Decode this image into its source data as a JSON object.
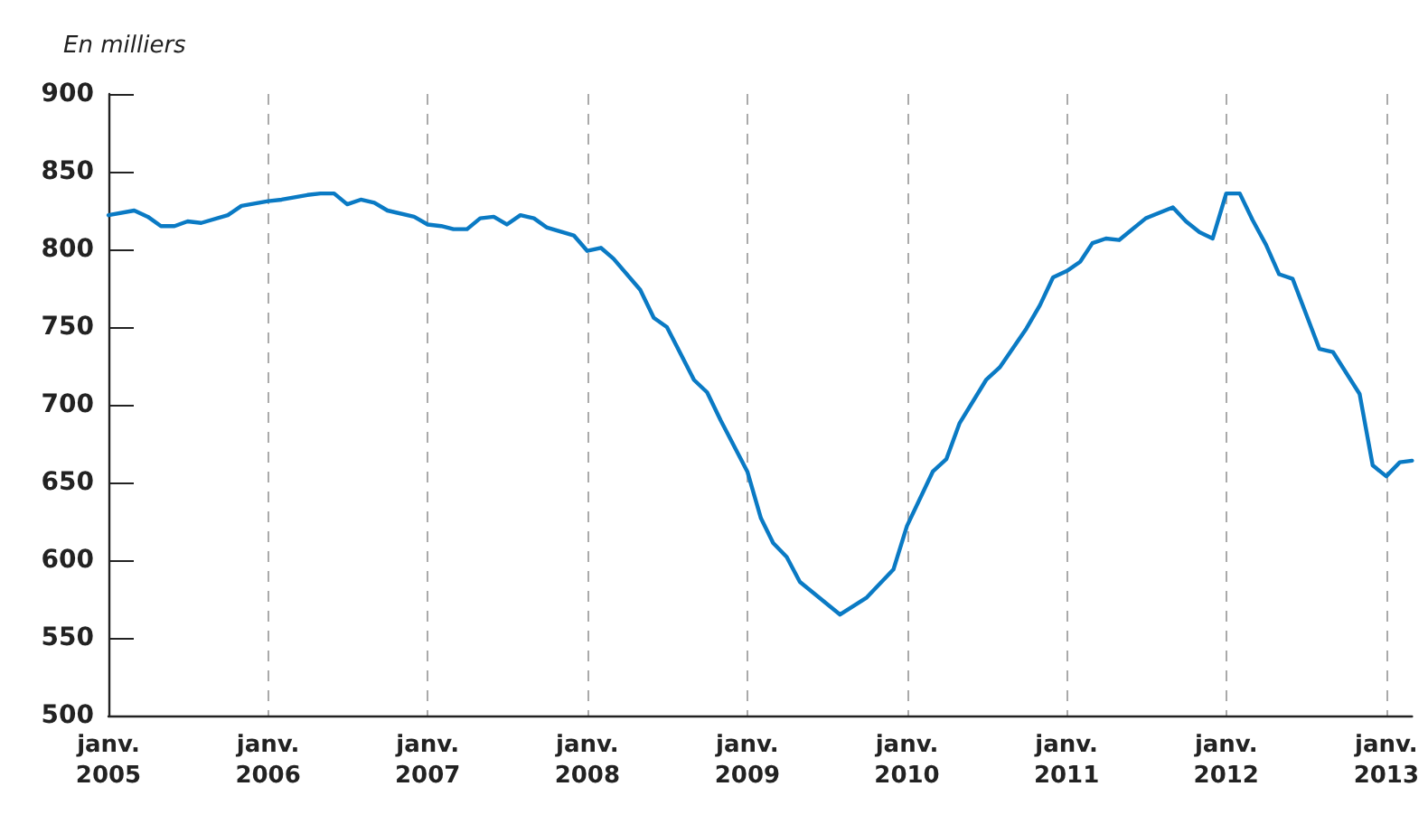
{
  "chart_data": {
    "type": "line",
    "ylabel": "En milliers",
    "x": [
      "2005-01",
      "2005-03",
      "2005-04",
      "2005-05",
      "2005-06",
      "2005-07",
      "2005-08",
      "2005-10",
      "2005-11",
      "2006-01",
      "2006-02",
      "2006-04",
      "2006-05",
      "2006-06",
      "2006-07",
      "2006-08",
      "2006-09",
      "2006-10",
      "2006-12",
      "2007-01",
      "2007-02",
      "2007-03",
      "2007-04",
      "2007-05",
      "2007-06",
      "2007-07",
      "2007-08",
      "2007-09",
      "2007-10",
      "2007-12",
      "2008-01",
      "2008-02",
      "2008-03",
      "2008-05",
      "2008-06",
      "2008-07",
      "2008-09",
      "2008-10",
      "2008-11",
      "2009-01",
      "2009-02",
      "2009-03",
      "2009-04",
      "2009-05",
      "2009-08",
      "2009-10",
      "2009-12",
      "2010-01",
      "2010-03",
      "2010-04",
      "2010-05",
      "2010-07",
      "2010-08",
      "2010-10",
      "2010-11",
      "2010-12",
      "2011-01",
      "2011-02",
      "2011-03",
      "2011-04",
      "2011-05",
      "2011-07",
      "2011-09",
      "2011-10",
      "2011-11",
      "2011-12",
      "2012-01",
      "2012-02",
      "2012-03",
      "2012-04",
      "2012-05",
      "2012-06",
      "2012-08",
      "2012-09",
      "2012-11",
      "2012-12",
      "2013-01",
      "2013-02",
      "2013-03"
    ],
    "series": [
      {
        "color": "#0a7ac4",
        "values": [
          822,
          825,
          821,
          815,
          815,
          818,
          817,
          822,
          828,
          831,
          832,
          835,
          836,
          836,
          829,
          832,
          830,
          825,
          821,
          816,
          815,
          813,
          813,
          820,
          821,
          816,
          822,
          820,
          814,
          809,
          799,
          801,
          794,
          774,
          756,
          750,
          716,
          708,
          690,
          657,
          627,
          611,
          602,
          586,
          565,
          576,
          594,
          622,
          657,
          665,
          688,
          716,
          724,
          749,
          764,
          782,
          786,
          792,
          804,
          807,
          806,
          820,
          827,
          818,
          811,
          807,
          836,
          836,
          819,
          803,
          784,
          781,
          736,
          734,
          707,
          661,
          654,
          663,
          664
        ]
      }
    ],
    "xlim": [
      "2005-01",
      "2013-03"
    ],
    "xticks": [
      {
        "value": "2005-01",
        "label": "janv.\n2005"
      },
      {
        "value": "2006-01",
        "label": "janv.\n2006"
      },
      {
        "value": "2007-01",
        "label": "janv.\n2007"
      },
      {
        "value": "2008-01",
        "label": "janv.\n2008"
      },
      {
        "value": "2009-01",
        "label": "janv.\n2009"
      },
      {
        "value": "2010-01",
        "label": "janv.\n2010"
      },
      {
        "value": "2011-01",
        "label": "janv.\n2011"
      },
      {
        "value": "2012-01",
        "label": "janv.\n2012"
      },
      {
        "value": "2013-01",
        "label": "janv.\n2013"
      }
    ],
    "ylim": [
      500,
      900
    ],
    "yticks": [
      500,
      550,
      600,
      650,
      700,
      750,
      800,
      850,
      900
    ],
    "grid": "x",
    "marker": "none",
    "line_style": "solid"
  }
}
